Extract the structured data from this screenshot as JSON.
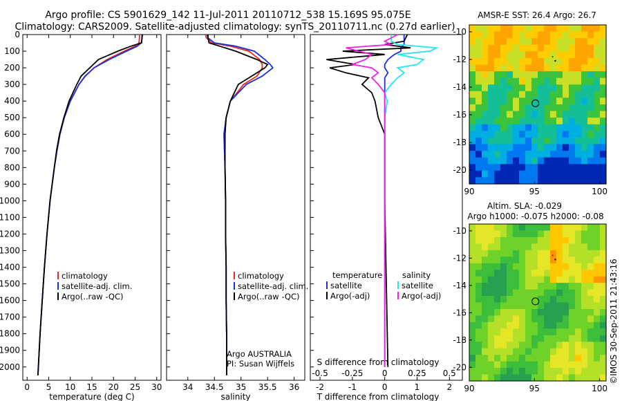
{
  "title": {
    "line1": "Argo profile: CS 5901629_142 11-Jul-2011 20110712_538 15.169S 95.075E",
    "line2": "Climatology: CARS2009. Satellite-adjusted climatology: synTS_20110711.nc (0.27d earlier)"
  },
  "colors": {
    "climatology": "#e8291c",
    "satellite": "#1a2fe0",
    "argo": "#000000",
    "sat_diff": "#22e6f0",
    "argo_diff": "#f020e8"
  },
  "chart_data": [
    {
      "type": "line",
      "name": "temperature",
      "xlabel": "temperature (deg C)",
      "ylabel": "",
      "xlim": [
        -1,
        31
      ],
      "ylim": [
        2080,
        0
      ],
      "xticks": [
        "0",
        "5",
        "10",
        "15",
        "20",
        "25",
        "30"
      ],
      "yticks": [
        "0",
        "100",
        "200",
        "300",
        "400",
        "500",
        "600",
        "700",
        "800",
        "900",
        "1000",
        "1100",
        "1200",
        "1300",
        "1400",
        "1500",
        "1600",
        "1700",
        "1800",
        "1900",
        "2000"
      ],
      "legend": [
        "climatology",
        "satellite-adj. clim.",
        "Argo(..raw -QC)"
      ],
      "depth": [
        0,
        20,
        50,
        70,
        100,
        150,
        200,
        250,
        300,
        400,
        500,
        600,
        700,
        800,
        900,
        1000,
        1200,
        1400,
        1600,
        1800,
        2000,
        2050
      ],
      "series": [
        {
          "name": "climatology",
          "values": [
            26.0,
            26.0,
            25.9,
            25.0,
            22.5,
            18.5,
            15.5,
            13.5,
            12.0,
            10.0,
            8.6,
            7.6,
            6.9,
            6.3,
            5.8,
            5.3,
            4.6,
            4.0,
            3.5,
            3.0,
            2.6,
            2.5
          ]
        },
        {
          "name": "satellite-adj. clim.",
          "values": [
            26.6,
            26.6,
            26.4,
            25.5,
            23.0,
            19.0,
            15.5,
            13.4,
            12.0,
            10.0,
            8.6,
            7.6,
            6.9,
            6.3,
            5.8,
            5.3,
            4.6,
            4.0,
            3.5,
            3.0,
            2.6,
            2.5
          ]
        },
        {
          "name": "Argo(..raw -QC)",
          "values": [
            26.7,
            26.6,
            26.5,
            24.0,
            21.0,
            16.5,
            14.5,
            12.5,
            11.5,
            9.7,
            8.5,
            7.5,
            6.8,
            6.3,
            5.8,
            5.3,
            4.6,
            4.0,
            3.5,
            3.0,
            2.6,
            2.5
          ]
        }
      ]
    },
    {
      "type": "line",
      "name": "salinity",
      "xlabel": "salinity",
      "ylabel": "",
      "xlim": [
        33.6,
        36.2
      ],
      "ylim": [
        2080,
        0
      ],
      "xticks": [
        "34",
        "34.5",
        "35",
        "35.5",
        "36"
      ],
      "legend": [
        "climatology",
        "satellite-adj. clim.",
        "Argo(..raw -QC)"
      ],
      "annotation": [
        "Argo AUSTRALIA",
        "PI: Susan Wijffels"
      ],
      "depth": [
        0,
        20,
        50,
        70,
        100,
        150,
        180,
        200,
        250,
        300,
        400,
        500,
        600,
        700,
        800,
        1000,
        1200,
        1400,
        1600,
        1800,
        2000,
        2050
      ],
      "series": [
        {
          "name": "climatology",
          "values": [
            34.33,
            34.35,
            34.45,
            34.8,
            35.15,
            35.35,
            35.4,
            35.4,
            35.3,
            35.05,
            34.8,
            34.72,
            34.68,
            34.69,
            34.7,
            34.71,
            34.71,
            34.72,
            34.72,
            34.73,
            34.73,
            34.73
          ]
        },
        {
          "name": "satellite-adj. clim.",
          "values": [
            34.36,
            34.38,
            34.5,
            34.9,
            35.25,
            35.45,
            35.55,
            35.6,
            35.4,
            35.1,
            34.8,
            34.72,
            34.68,
            34.69,
            34.7,
            34.71,
            34.71,
            34.72,
            34.72,
            34.73,
            34.73,
            34.73
          ]
        },
        {
          "name": "Argo(..raw -QC)",
          "values": [
            34.38,
            34.38,
            34.4,
            34.6,
            34.9,
            35.3,
            35.5,
            35.45,
            35.2,
            34.95,
            34.8,
            34.72,
            34.7,
            34.7,
            34.7,
            34.71,
            34.71,
            34.72,
            34.72,
            34.73,
            34.73,
            34.73
          ]
        }
      ]
    },
    {
      "type": "line",
      "name": "differences",
      "xlabel": "T difference from climatology",
      "xlabel_top": "S difference from climatology",
      "xlim": [
        -2.3,
        2.4
      ],
      "ylim": [
        2080,
        0
      ],
      "xticks": [
        "-2",
        "-1",
        "0",
        "1",
        "2"
      ],
      "sticks": [
        "-0.5",
        "-0.25",
        "0",
        "0.25",
        "0.5"
      ],
      "legend": {
        "temperature": [
          "temperature",
          "satellite",
          "Argo(-adj)"
        ],
        "salinity": [
          "salinity",
          "satellite",
          "Argo(-adj)"
        ]
      },
      "depth": [
        0,
        40,
        60,
        80,
        100,
        120,
        150,
        180,
        200,
        230,
        260,
        300,
        350,
        400,
        500,
        600,
        800,
        1000,
        1500,
        2000
      ],
      "series": [
        {
          "name": "temperature satellite",
          "values": [
            0.6,
            0.6,
            0.6,
            0.5,
            0.5,
            0.3,
            0.1,
            0.0,
            0.0,
            0.1,
            0.0,
            0.0,
            0.0,
            0.0,
            0.0,
            0.0,
            0.0,
            0.0,
            0.0,
            0.0
          ]
        },
        {
          "name": "temperature Argo(-adj)",
          "values": [
            0.7,
            0.6,
            0.0,
            0.8,
            -1.3,
            0.0,
            -1.8,
            -0.9,
            -1.7,
            -1.2,
            -0.5,
            -0.7,
            -0.4,
            -0.3,
            -0.2,
            0.0,
            0.0,
            0.0,
            0.05,
            0.1
          ]
        },
        {
          "name": "salinity satellite",
          "values": [
            0.05,
            0.05,
            0.1,
            0.4,
            0.35,
            0.1,
            0.3,
            0.25,
            0.1,
            0.15,
            0.1,
            0.05,
            0.0,
            0.02,
            0.0,
            0.0,
            0.0,
            0.0,
            0.0,
            0.0
          ]
        },
        {
          "name": "salinity Argo(-adj)",
          "values": [
            0.1,
            0.0,
            0.05,
            -0.3,
            -0.2,
            -0.1,
            -0.15,
            -0.25,
            -0.1,
            -0.05,
            -0.1,
            -0.05,
            0.0,
            0.0,
            0.0,
            0.0,
            0.0,
            0.0,
            0.0,
            0.0
          ]
        }
      ]
    },
    {
      "type": "heatmap",
      "name": "sst-map",
      "title": "AMSR-E SST: 26.4  Argo: 26.7",
      "xlim": [
        90,
        100.5
      ],
      "ylim": [
        -21,
        -9.5
      ],
      "xticks": [
        "90",
        "95",
        "100"
      ],
      "yticks": [
        "-10",
        "-12",
        "-14",
        "-16",
        "-18",
        "-20"
      ],
      "profile_location": {
        "lon": 95.075,
        "lat": -15.169
      }
    },
    {
      "type": "heatmap",
      "name": "sla-map",
      "title": "Altim. SLA: -0.029",
      "subtitle": "Argo h1000: -0.075 h2000: -0.08",
      "xlim": [
        90,
        100.5
      ],
      "ylim": [
        -21,
        -9.5
      ],
      "xticks": [
        "90",
        "95",
        "100"
      ],
      "yticks": [
        "-10",
        "-12",
        "-14",
        "-16",
        "-18",
        "-20"
      ],
      "profile_location": {
        "lon": 95.075,
        "lat": -15.169
      }
    }
  ],
  "watermark": "©IMOS 30-Sep-2011 21:43:16"
}
